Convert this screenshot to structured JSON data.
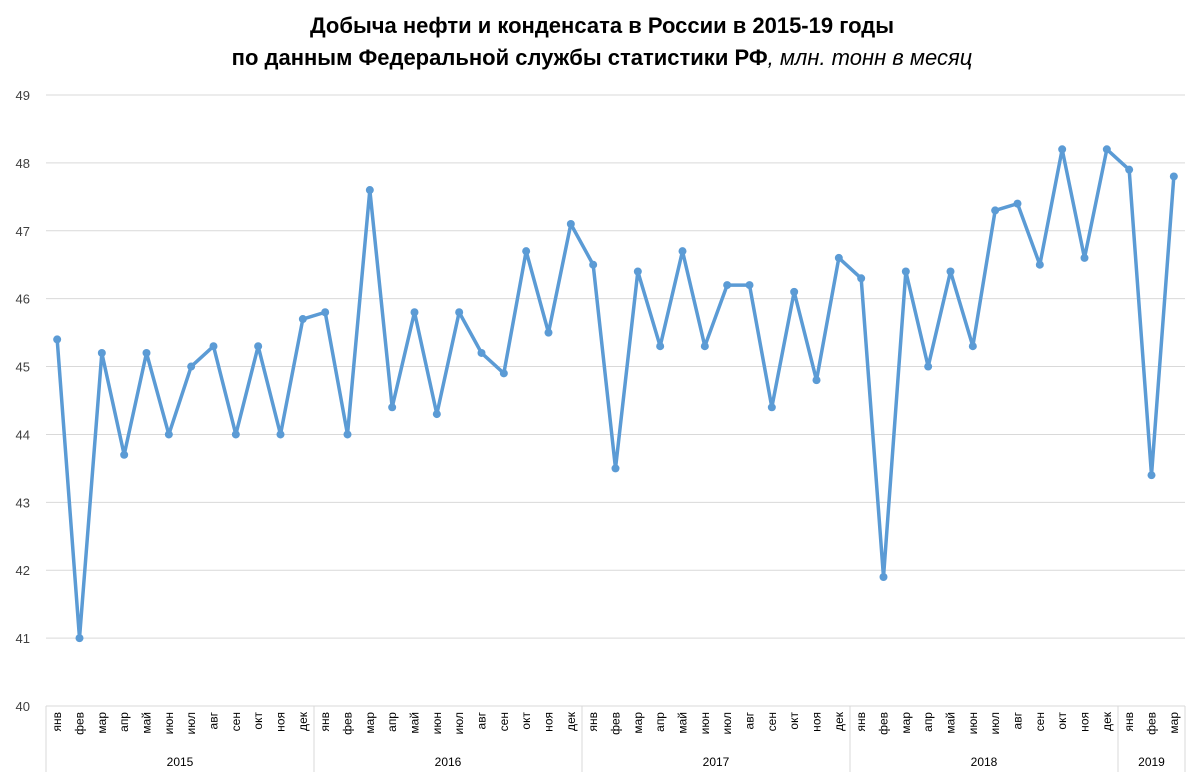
{
  "chart_data": {
    "type": "line",
    "title": "Добыча нефти и конденсата в России в 2015-19 годы",
    "subtitle_bold": "по данным Федеральной службы статистики РФ",
    "subtitle_italic": ", млн. тонн в месяц",
    "xlabel": "",
    "ylabel": "",
    "ylim": [
      40,
      49
    ],
    "yticks": [
      "40",
      "41",
      "42",
      "43",
      "44",
      "45",
      "46",
      "47",
      "48",
      "49"
    ],
    "grid": true,
    "line_color": "#5B9BD5",
    "years": [
      {
        "label": "2015",
        "months": [
          "янв",
          "фев",
          "мар",
          "апр",
          "май",
          "июн",
          "июл",
          "авг",
          "сен",
          "окт",
          "ноя",
          "дек"
        ]
      },
      {
        "label": "2016",
        "months": [
          "янв",
          "фев",
          "мар",
          "апр",
          "май",
          "июн",
          "июл",
          "авг",
          "сен",
          "окт",
          "ноя",
          "дек"
        ]
      },
      {
        "label": "2017",
        "months": [
          "янв",
          "фев",
          "мар",
          "апр",
          "май",
          "июн",
          "июл",
          "авг",
          "сен",
          "окт",
          "ноя",
          "дек"
        ]
      },
      {
        "label": "2018",
        "months": [
          "янв",
          "фев",
          "мар",
          "апр",
          "май",
          "июн",
          "июл",
          "авг",
          "сен",
          "окт",
          "ноя",
          "дек"
        ]
      },
      {
        "label": "2019",
        "months": [
          "янв",
          "фев",
          "мар"
        ]
      }
    ],
    "series": [
      {
        "name": "Добыча нефти и конденсата",
        "values": [
          45.4,
          41.0,
          45.2,
          43.7,
          45.2,
          44.0,
          45.0,
          45.3,
          44.0,
          45.3,
          44.0,
          45.7,
          45.8,
          44.0,
          47.6,
          44.4,
          45.8,
          44.3,
          45.8,
          45.2,
          44.9,
          46.7,
          45.5,
          47.1,
          46.5,
          43.5,
          46.4,
          45.3,
          46.7,
          45.3,
          46.2,
          46.2,
          44.4,
          46.1,
          44.8,
          46.6,
          46.3,
          41.9,
          46.4,
          45.0,
          46.4,
          45.3,
          47.3,
          47.4,
          46.5,
          48.2,
          46.6,
          48.2,
          47.9,
          43.4,
          47.8
        ]
      }
    ]
  }
}
